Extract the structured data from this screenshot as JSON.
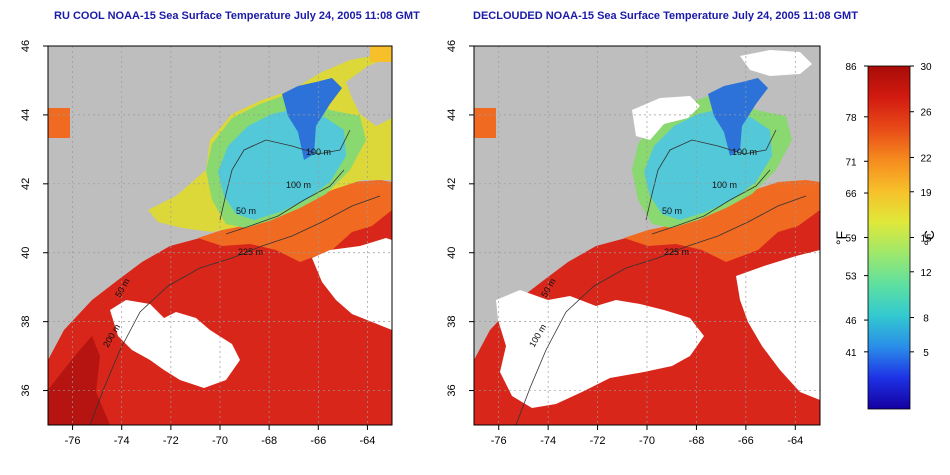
{
  "panels": [
    {
      "title": "RU COOL NOAA-15 Sea Surface Temperature July 24, 2005 11:08 GMT",
      "x_ticks": [
        "-76",
        "-74",
        "-72",
        "-70",
        "-68",
        "-66",
        "-64"
      ],
      "y_ticks": [
        "36",
        "38",
        "40",
        "42",
        "44",
        "46"
      ],
      "contour_labels": [
        "100 m",
        "100 m",
        "50 m",
        "225 m",
        "50 m",
        "200 m"
      ]
    },
    {
      "title": "DECLOUDED NOAA-15 Sea Surface Temperature July 24, 2005 11:08 GMT",
      "x_ticks": [
        "-76",
        "-74",
        "-72",
        "-70",
        "-68",
        "-66",
        "-64"
      ],
      "y_ticks": [
        "36",
        "38",
        "40",
        "42",
        "44",
        "46"
      ],
      "contour_labels": [
        "100 m",
        "100 m",
        "50 m",
        "225 m",
        "50 m",
        "100 m"
      ]
    }
  ],
  "colorbar": {
    "f_label": "°F",
    "c_label": "°C",
    "f_ticks": [
      "86",
      "78",
      "71",
      "66",
      "59",
      "53",
      "46",
      "41"
    ],
    "c_ticks": [
      "30",
      "26",
      "22",
      "19",
      "15",
      "12",
      "8",
      "5"
    ],
    "c_range": [
      0,
      30
    ],
    "stops": [
      "#1400a0",
      "#1e32e6",
      "#2a8ee8",
      "#33c9d0",
      "#5fe0a0",
      "#9ee86a",
      "#e0e83a",
      "#f7c02a",
      "#f58a1e",
      "#e84a18",
      "#d21a10",
      "#a80c08"
    ]
  },
  "colors": {
    "land": "#bebebe",
    "cloud": "#ffffff",
    "title": "#1a1aa8",
    "sst_warm": "#d8261a",
    "sst_hot": "#b51410",
    "sst_orange": "#f06a22",
    "sst_yellow": "#dcd83a",
    "sst_green": "#8ad870",
    "sst_cyan": "#52c8d8",
    "sst_blue": "#2c72d8"
  }
}
